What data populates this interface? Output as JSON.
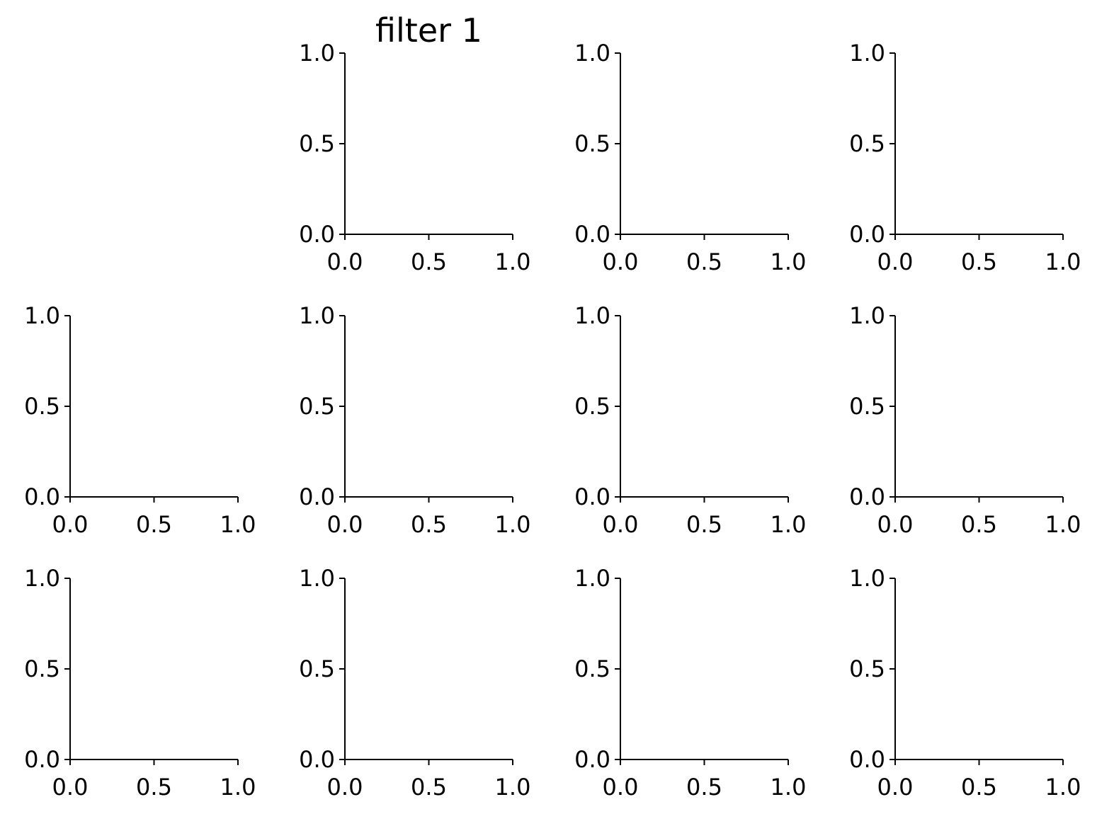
{
  "chart_data": {
    "type": "line",
    "layout": "3x4 grid of empty axes; the top-left cell holds no axes",
    "spines": "left and bottom only",
    "grid": false,
    "panels": [
      {
        "row": 0,
        "col": 1,
        "title": "filter 1",
        "xlim": [
          0,
          1
        ],
        "ylim": [
          0,
          1
        ],
        "xticks": [
          "0.0",
          "0.5",
          "1.0"
        ],
        "yticks": [
          "0.0",
          "0.5",
          "1.0"
        ],
        "series": []
      },
      {
        "row": 0,
        "col": 2,
        "title": "",
        "xlim": [
          0,
          1
        ],
        "ylim": [
          0,
          1
        ],
        "xticks": [
          "0.0",
          "0.5",
          "1.0"
        ],
        "yticks": [
          "0.0",
          "0.5",
          "1.0"
        ],
        "series": []
      },
      {
        "row": 0,
        "col": 3,
        "title": "",
        "xlim": [
          0,
          1
        ],
        "ylim": [
          0,
          1
        ],
        "xticks": [
          "0.0",
          "0.5",
          "1.0"
        ],
        "yticks": [
          "0.0",
          "0.5",
          "1.0"
        ],
        "series": []
      },
      {
        "row": 1,
        "col": 0,
        "title": "",
        "xlim": [
          0,
          1
        ],
        "ylim": [
          0,
          1
        ],
        "xticks": [
          "0.0",
          "0.5",
          "1.0"
        ],
        "yticks": [
          "0.0",
          "0.5",
          "1.0"
        ],
        "series": []
      },
      {
        "row": 1,
        "col": 1,
        "title": "",
        "xlim": [
          0,
          1
        ],
        "ylim": [
          0,
          1
        ],
        "xticks": [
          "0.0",
          "0.5",
          "1.0"
        ],
        "yticks": [
          "0.0",
          "0.5",
          "1.0"
        ],
        "series": []
      },
      {
        "row": 1,
        "col": 2,
        "title": "",
        "xlim": [
          0,
          1
        ],
        "ylim": [
          0,
          1
        ],
        "xticks": [
          "0.0",
          "0.5",
          "1.0"
        ],
        "yticks": [
          "0.0",
          "0.5",
          "1.0"
        ],
        "series": []
      },
      {
        "row": 1,
        "col": 3,
        "title": "",
        "xlim": [
          0,
          1
        ],
        "ylim": [
          0,
          1
        ],
        "xticks": [
          "0.0",
          "0.5",
          "1.0"
        ],
        "yticks": [
          "0.0",
          "0.5",
          "1.0"
        ],
        "series": []
      },
      {
        "row": 2,
        "col": 0,
        "title": "",
        "xlim": [
          0,
          1
        ],
        "ylim": [
          0,
          1
        ],
        "xticks": [
          "0.0",
          "0.5",
          "1.0"
        ],
        "yticks": [
          "0.0",
          "0.5",
          "1.0"
        ],
        "series": []
      },
      {
        "row": 2,
        "col": 1,
        "title": "",
        "xlim": [
          0,
          1
        ],
        "ylim": [
          0,
          1
        ],
        "xticks": [
          "0.0",
          "0.5",
          "1.0"
        ],
        "yticks": [
          "0.0",
          "0.5",
          "1.0"
        ],
        "series": []
      },
      {
        "row": 2,
        "col": 2,
        "title": "",
        "xlim": [
          0,
          1
        ],
        "ylim": [
          0,
          1
        ],
        "xticks": [
          "0.0",
          "0.5",
          "1.0"
        ],
        "yticks": [
          "0.0",
          "0.5",
          "1.0"
        ],
        "series": []
      },
      {
        "row": 2,
        "col": 3,
        "title": "",
        "xlim": [
          0,
          1
        ],
        "ylim": [
          0,
          1
        ],
        "xticks": [
          "0.0",
          "0.5",
          "1.0"
        ],
        "yticks": [
          "0.0",
          "0.5",
          "1.0"
        ],
        "series": []
      }
    ]
  }
}
